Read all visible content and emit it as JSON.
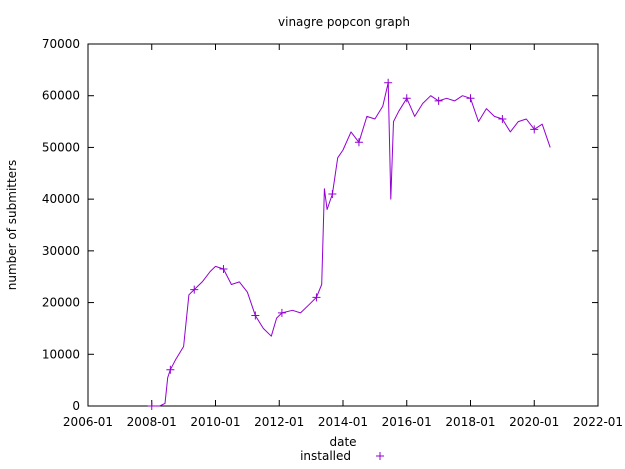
{
  "colors": {
    "series": "#9400d3",
    "axis": "#000000",
    "background": "#ffffff"
  },
  "chart_data": {
    "type": "line",
    "title": "vinagre popcon graph",
    "xlabel": "date",
    "ylabel": "number of submitters",
    "xlim": [
      "2006-01",
      "2022-01"
    ],
    "ylim": [
      0,
      70000
    ],
    "grid": false,
    "legend_position": "bottom-center",
    "x_ticks": [
      "2006-01",
      "2008-01",
      "2010-01",
      "2012-01",
      "2014-01",
      "2016-01",
      "2018-01",
      "2020-01",
      "2022-01"
    ],
    "y_ticks": [
      "0",
      "10000",
      "20000",
      "30000",
      "40000",
      "50000",
      "60000",
      "70000"
    ],
    "series": [
      {
        "name": "installed",
        "marker": "plus",
        "x": [
          "2008-01",
          "2008-04",
          "2008-06",
          "2008-07",
          "2008-08",
          "2008-10",
          "2009-01",
          "2009-03",
          "2009-05",
          "2009-08",
          "2009-11",
          "2010-01",
          "2010-04",
          "2010-07",
          "2010-10",
          "2011-01",
          "2011-04",
          "2011-07",
          "2011-10",
          "2011-12",
          "2012-02",
          "2012-06",
          "2012-09",
          "2012-12",
          "2013-03",
          "2013-05",
          "2013-06",
          "2013-07",
          "2013-09",
          "2013-11",
          "2014-01",
          "2014-04",
          "2014-07",
          "2014-10",
          "2015-01",
          "2015-04",
          "2015-06",
          "2015-07",
          "2015-08",
          "2015-10",
          "2016-01",
          "2016-04",
          "2016-07",
          "2016-10",
          "2017-01",
          "2017-04",
          "2017-07",
          "2017-10",
          "2018-01",
          "2018-04",
          "2018-07",
          "2018-10",
          "2019-01",
          "2019-04",
          "2019-07",
          "2019-10",
          "2020-01",
          "2020-04",
          "2020-07"
        ],
        "y": [
          0,
          0,
          500,
          5500,
          7000,
          9000,
          11500,
          21500,
          22500,
          24000,
          26000,
          27000,
          26500,
          23500,
          24000,
          22000,
          17500,
          15000,
          13500,
          17000,
          18000,
          18500,
          18000,
          19500,
          21000,
          23500,
          42000,
          38000,
          41000,
          48000,
          49500,
          53000,
          51000,
          56000,
          55500,
          58000,
          62500,
          40000,
          55000,
          57000,
          59500,
          56000,
          58500,
          60000,
          59000,
          59500,
          59000,
          60000,
          59500,
          55000,
          57500,
          56000,
          55500,
          53000,
          55000,
          55500,
          53500,
          54500,
          50000
        ]
      }
    ]
  }
}
